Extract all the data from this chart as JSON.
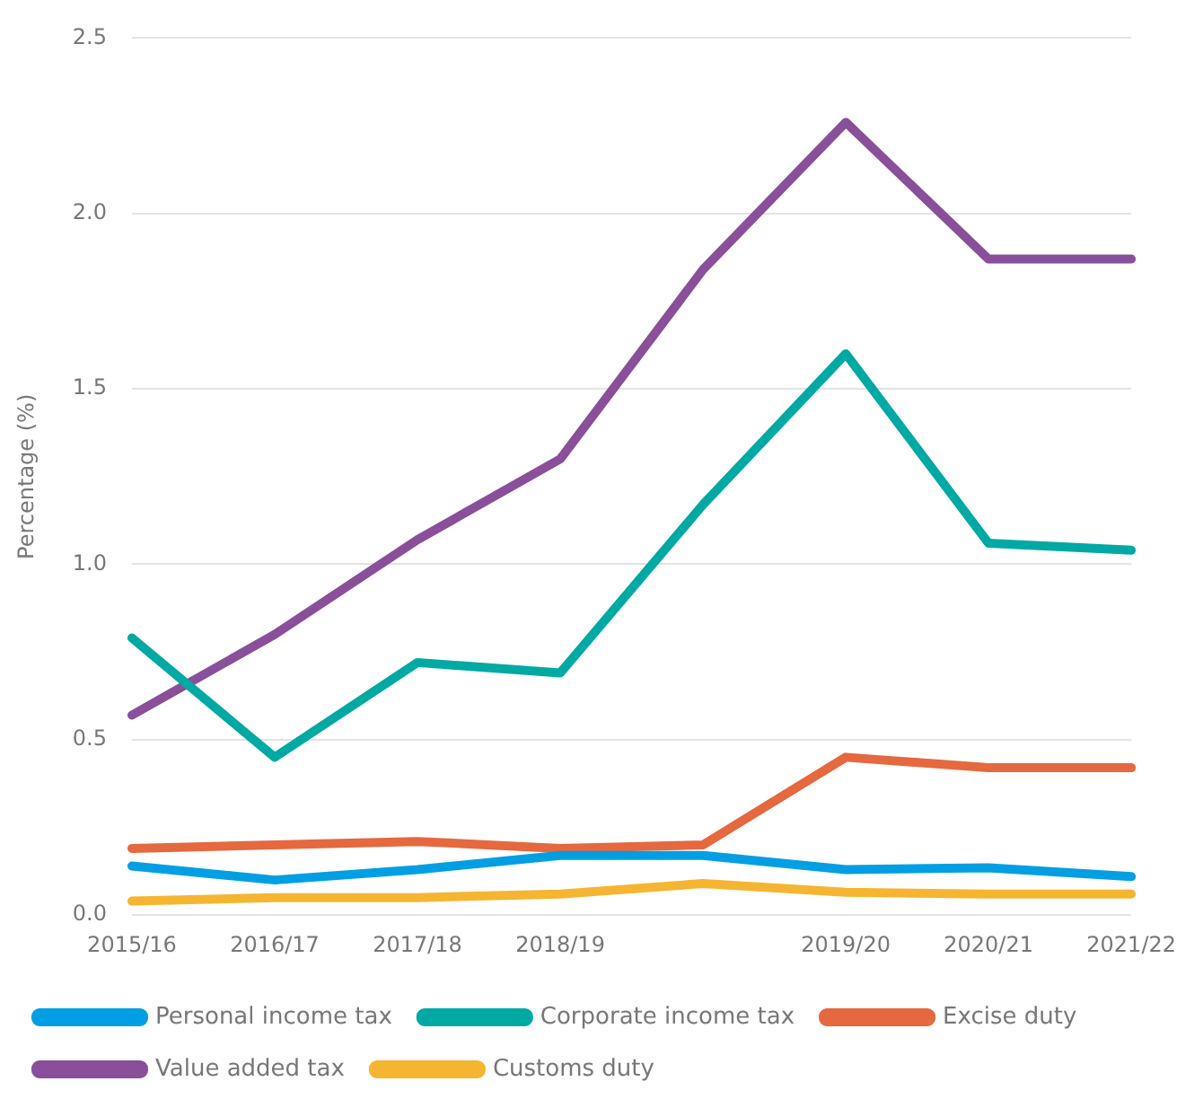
{
  "chart_data": {
    "type": "line",
    "ylabel": "Percentage (%)",
    "categories": [
      "2015/16",
      "2016/17",
      "2017/18",
      "2018/19",
      null,
      "2019/20",
      "2020/21",
      "2021/22"
    ],
    "ylim": [
      0,
      2.5
    ],
    "yticks": [
      {
        "value": 0,
        "label": "0.0"
      },
      {
        "value": 0.5,
        "label": "0.5"
      },
      {
        "value": 1,
        "label": "1.0"
      },
      {
        "value": 1.5,
        "label": "1.5"
      },
      {
        "value": 2,
        "label": "2.0"
      },
      {
        "value": 2.5,
        "label": "2.5"
      }
    ],
    "grid": "y",
    "legend": "bottom",
    "marker": "none",
    "line_style": "solid",
    "series": [
      {
        "name": "Personal income tax",
        "color": "#009fe3",
        "values": [
          0.14,
          0.1,
          0.13,
          0.17,
          0.17,
          0.13,
          0.135,
          0.11
        ]
      },
      {
        "name": "Corporate income tax",
        "color": "#00a9a4",
        "values": [
          0.79,
          0.45,
          0.72,
          0.69,
          1.17,
          1.6,
          1.06,
          1.04
        ]
      },
      {
        "name": "Excise duty",
        "color": "#e5683f",
        "values": [
          0.19,
          0.2,
          0.21,
          0.19,
          0.2,
          0.45,
          0.42,
          0.42
        ]
      },
      {
        "name": "Value added tax",
        "color": "#8a4f9a",
        "values": [
          0.57,
          0.8,
          1.07,
          1.3,
          1.84,
          2.26,
          1.87,
          1.87
        ]
      },
      {
        "name": "Customs duty",
        "color": "#f6b531",
        "values": [
          0.04,
          0.05,
          0.05,
          0.06,
          0.09,
          0.065,
          0.06,
          0.06
        ]
      }
    ]
  }
}
